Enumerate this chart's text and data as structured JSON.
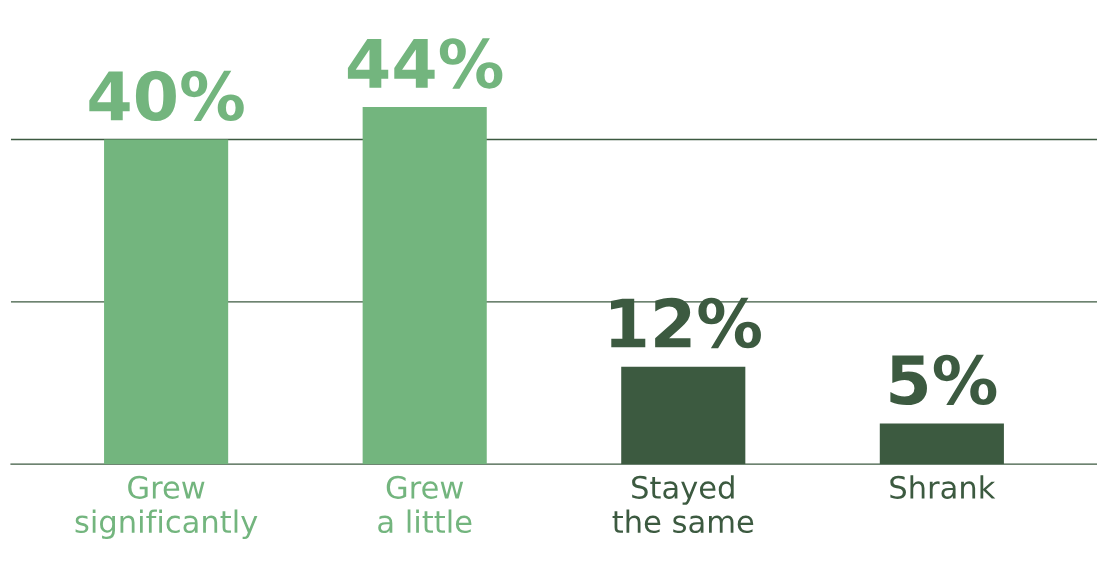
{
  "chart_data": {
    "type": "bar",
    "categories": [
      "Grew\nsignificantly",
      "Grew\na little",
      "Stayed\nthe same",
      "Shrank"
    ],
    "values": [
      40,
      44,
      12,
      5
    ],
    "colors": [
      "#73b57e",
      "#73b57e",
      "#3c5a40",
      "#3c5a40"
    ],
    "value_labels": [
      "40%",
      "44%",
      "12%",
      "5%"
    ],
    "ref_lines": [
      {
        "axis": "y",
        "value": 20,
        "color": "#3c5a40"
      },
      {
        "axis": "y",
        "value": 40,
        "color": "#3c5a40"
      }
    ],
    "tick_labels": "x"
  }
}
